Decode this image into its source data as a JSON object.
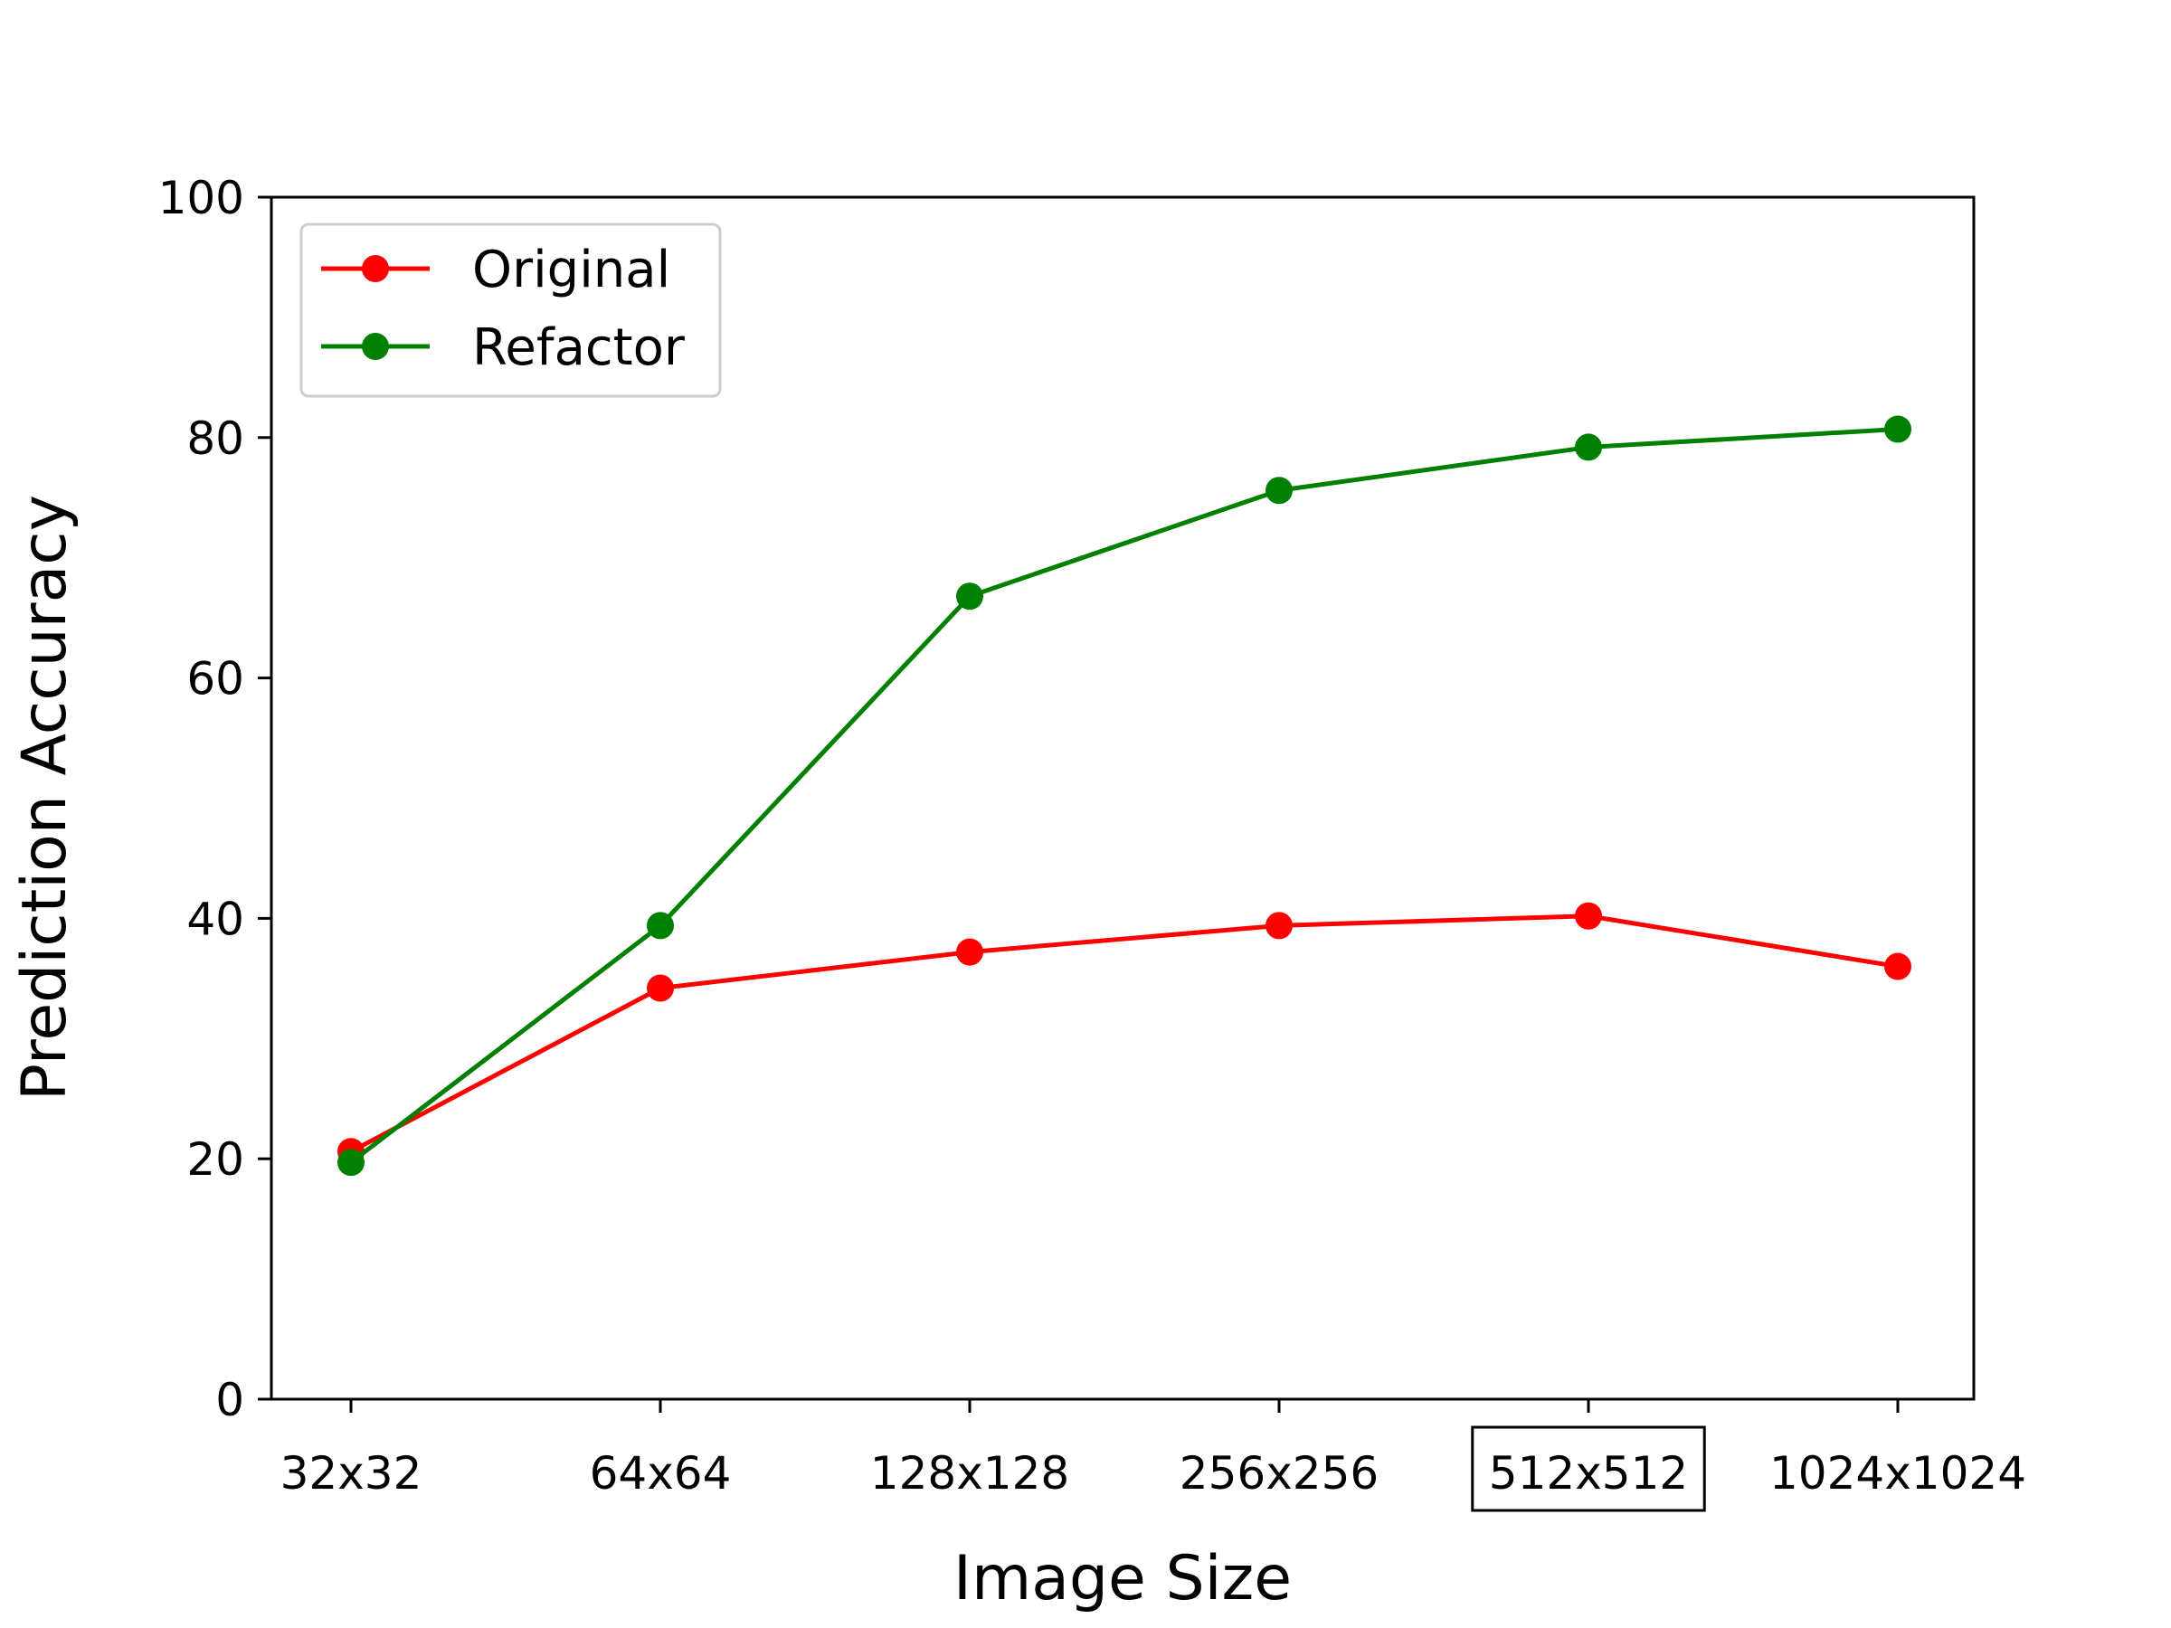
{
  "chart_data": {
    "type": "line",
    "xlabel": "Image Size",
    "ylabel": "Prediction Accuracy",
    "categories": [
      "32x32",
      "64x64",
      "128x128",
      "256x256",
      "512x512",
      "1024x1024"
    ],
    "highlighted_category": "512x512",
    "ylim": [
      0,
      100
    ],
    "yticks": [
      "0",
      "20",
      "40",
      "60",
      "80",
      "100"
    ],
    "grid": false,
    "legend_position": "top-left",
    "series": [
      {
        "name": "Original",
        "color": "#ff0000",
        "values": [
          20.6,
          34.2,
          37.2,
          39.4,
          40.2,
          36.0
        ]
      },
      {
        "name": "Refactor",
        "color": "#008000",
        "values": [
          19.7,
          39.4,
          66.8,
          75.6,
          79.2,
          80.7
        ]
      }
    ]
  }
}
